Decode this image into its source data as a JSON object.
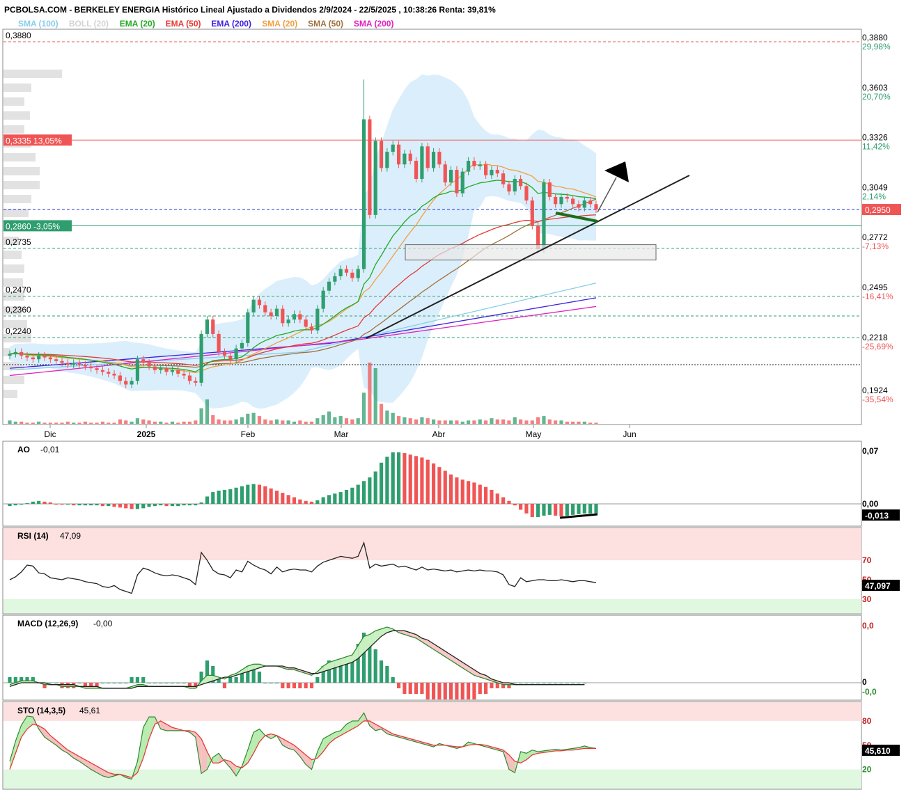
{
  "header": {
    "title": "PCBOLSA.COM - BERKELEY ENERGIA Histórico Lineal Ajustado a Dividendos 2/9/2024 - 22/5/2025 , 10:38:26 Renta: 39,81%",
    "legend": [
      {
        "label": "SMA (100)",
        "color": "#87ceeb"
      },
      {
        "label": "BOLL (20)",
        "color": "#d3d3d3"
      },
      {
        "label": "EMA (20)",
        "color": "#22aa22"
      },
      {
        "label": "EMA (50)",
        "color": "#e53935"
      },
      {
        "label": "EMA (200)",
        "color": "#3b1fe0"
      },
      {
        "label": "SMA (20)",
        "color": "#f0a040"
      },
      {
        "label": "SMA (50)",
        "color": "#a0703a"
      },
      {
        "label": "SMA (200)",
        "color": "#e020c0"
      }
    ]
  },
  "colors": {
    "up": "#2e9e6e",
    "down": "#f05555",
    "boll_fill": "#dbeefb"
  },
  "chart_data": [
    {
      "type": "candlestick",
      "title": "BERKELEY ENERGIA",
      "x_ticks": [
        "Dic",
        "2025",
        "Feb",
        "Mar",
        "Abr",
        "May",
        "Jun"
      ],
      "ylim": [
        0.185,
        0.39
      ],
      "right_axis": [
        {
          "value": "0,3880",
          "pct": "29,98%",
          "pct_color": "#2e9e6e"
        },
        {
          "value": "0,3603",
          "pct": "20,70%",
          "pct_color": "#2e9e6e"
        },
        {
          "value": "0,3326",
          "pct": "11,42%",
          "pct_color": "#2e9e6e"
        },
        {
          "value": "0,3049",
          "pct": "2,14%",
          "pct_color": "#2e9e6e"
        },
        {
          "value": "0,2772",
          "pct": "-7,13%",
          "pct_color": "#f05555"
        },
        {
          "value": "0,2495",
          "pct": "-16,41%",
          "pct_color": "#f05555"
        },
        {
          "value": "0,2218",
          "pct": "-25,69%",
          "pct_color": "#f05555"
        },
        {
          "value": "0,1924",
          "pct": "-35,54%",
          "pct_color": "#f05555"
        }
      ],
      "last_price": "0,2950",
      "levels": [
        {
          "label": "0,3880",
          "value": 0.388
        },
        {
          "label": "0,3335  13,05%",
          "value": 0.3335
        },
        {
          "label": "0,2860  -3,05%",
          "value": 0.286
        },
        {
          "label": "0,2735",
          "value": 0.2735
        },
        {
          "label": "0,2470",
          "value": 0.247
        },
        {
          "label": "0,2360",
          "value": 0.236
        },
        {
          "label": "0,2240",
          "value": 0.224
        }
      ],
      "close": [
        0.215,
        0.216,
        0.214,
        0.213,
        0.212,
        0.214,
        0.213,
        0.212,
        0.211,
        0.21,
        0.209,
        0.21,
        0.209,
        0.208,
        0.207,
        0.206,
        0.205,
        0.204,
        0.203,
        0.2,
        0.198,
        0.2,
        0.212,
        0.21,
        0.208,
        0.206,
        0.207,
        0.205,
        0.206,
        0.204,
        0.203,
        0.2,
        0.199,
        0.226,
        0.234,
        0.226,
        0.216,
        0.214,
        0.212,
        0.218,
        0.221,
        0.238,
        0.245,
        0.242,
        0.238,
        0.236,
        0.24,
        0.232,
        0.234,
        0.237,
        0.234,
        0.23,
        0.228,
        0.24,
        0.25,
        0.255,
        0.258,
        0.262,
        0.26,
        0.257,
        0.262,
        0.345,
        0.292,
        0.333,
        0.318,
        0.327,
        0.331,
        0.32,
        0.326,
        0.322,
        0.312,
        0.33,
        0.318,
        0.327,
        0.32,
        0.31,
        0.317,
        0.304,
        0.316,
        0.322,
        0.319,
        0.32,
        0.314,
        0.317,
        0.315,
        0.309,
        0.305,
        0.312,
        0.308,
        0.3,
        0.286,
        0.273,
        0.31,
        0.302,
        0.298,
        0.302,
        0.301,
        0.298,
        0.296,
        0.3,
        0.298,
        0.295
      ],
      "volume_relative": [
        3,
        2,
        2,
        1,
        1,
        2,
        1,
        1,
        1,
        1,
        2,
        1,
        1,
        2,
        1,
        1,
        2,
        1,
        1,
        4,
        3,
        2,
        5,
        4,
        3,
        2,
        2,
        1,
        2,
        1,
        2,
        2,
        3,
        14,
        22,
        8,
        4,
        3,
        3,
        4,
        6,
        9,
        10,
        7,
        4,
        3,
        4,
        3,
        3,
        2,
        3,
        2,
        2,
        5,
        8,
        11,
        6,
        7,
        5,
        4,
        5,
        28,
        55,
        50,
        18,
        12,
        10,
        7,
        6,
        5,
        4,
        6,
        5,
        4,
        3,
        3,
        3,
        3,
        2,
        3,
        3,
        4,
        3,
        5,
        4,
        4,
        3,
        6,
        4,
        3,
        3,
        6,
        7,
        4,
        3,
        3,
        2,
        2,
        2,
        2,
        1,
        1
      ]
    },
    {
      "type": "bar",
      "title": "AO",
      "value_label": "-0,01",
      "right_axis": [
        "0,07",
        "0,00"
      ],
      "last_value": "-0,013",
      "values": [
        -0.003,
        -0.002,
        -0.001,
        0.001,
        0.003,
        0.004,
        0.003,
        0.002,
        0.0,
        -0.001,
        -0.001,
        -0.002,
        -0.002,
        -0.002,
        -0.002,
        -0.002,
        -0.003,
        -0.003,
        -0.004,
        -0.005,
        -0.006,
        -0.007,
        -0.007,
        -0.006,
        -0.004,
        -0.003,
        -0.002,
        -0.003,
        -0.003,
        -0.003,
        -0.002,
        -0.002,
        -0.002,
        0.002,
        0.01,
        0.016,
        0.018,
        0.019,
        0.02,
        0.022,
        0.024,
        0.026,
        0.027,
        0.026,
        0.024,
        0.021,
        0.018,
        0.015,
        0.012,
        0.009,
        0.006,
        0.004,
        0.003,
        0.005,
        0.009,
        0.012,
        0.014,
        0.016,
        0.019,
        0.022,
        0.026,
        0.031,
        0.036,
        0.044,
        0.056,
        0.064,
        0.07,
        0.07,
        0.069,
        0.067,
        0.065,
        0.063,
        0.06,
        0.055,
        0.05,
        0.045,
        0.04,
        0.036,
        0.033,
        0.031,
        0.029,
        0.026,
        0.023,
        0.019,
        0.014,
        0.009,
        0.004,
        -0.002,
        -0.008,
        -0.013,
        -0.018,
        -0.018,
        -0.016,
        -0.015,
        -0.016,
        -0.017,
        -0.016,
        -0.015,
        -0.014,
        -0.013,
        -0.013,
        -0.013
      ]
    },
    {
      "type": "line",
      "title": "RSI (14)",
      "value_label": "47,09",
      "ylim": [
        0,
        100
      ],
      "right_axis": [
        "70",
        "50",
        "30"
      ],
      "last_value": "47,097",
      "values": [
        50,
        53,
        58,
        65,
        64,
        57,
        56,
        52,
        51,
        50,
        52,
        51,
        50,
        48,
        47,
        46,
        43,
        42,
        44,
        40,
        38,
        36,
        55,
        62,
        60,
        57,
        55,
        54,
        55,
        54,
        52,
        50,
        45,
        78,
        70,
        60,
        56,
        55,
        52,
        60,
        58,
        69,
        65,
        62,
        60,
        56,
        63,
        58,
        60,
        61,
        60,
        60,
        58,
        64,
        68,
        70,
        72,
        74,
        73,
        72,
        74,
        88,
        62,
        66,
        64,
        65,
        66,
        63,
        64,
        62,
        60,
        63,
        60,
        61,
        60,
        59,
        60,
        58,
        59,
        60,
        59,
        60,
        59,
        59,
        58,
        55,
        45,
        43,
        52,
        48,
        49,
        50,
        50,
        49,
        49,
        50,
        49,
        48,
        49,
        49,
        48,
        47
      ]
    },
    {
      "type": "line",
      "title": "MACD (12,26,9)",
      "value_label": "-0,00",
      "right_axis": [
        "0,0",
        "0",
        "-0,0"
      ],
      "series": [
        {
          "name": "MACD",
          "values": [
            -0.001,
            0.0,
            0.001,
            0.001,
            0.001,
            0.0,
            -0.001,
            -0.001,
            -0.001,
            -0.002,
            -0.002,
            -0.002,
            -0.002,
            -0.003,
            -0.003,
            -0.003,
            -0.003,
            -0.003,
            -0.003,
            -0.003,
            -0.003,
            -0.002,
            -0.001,
            -0.001,
            -0.002,
            -0.002,
            -0.002,
            -0.002,
            -0.002,
            -0.002,
            -0.002,
            -0.003,
            -0.003,
            0.001,
            0.004,
            0.004,
            0.003,
            0.002,
            0.004,
            0.005,
            0.007,
            0.009,
            0.01,
            0.01,
            0.009,
            0.009,
            0.009,
            0.008,
            0.007,
            0.007,
            0.006,
            0.005,
            0.004,
            0.006,
            0.009,
            0.011,
            0.012,
            0.013,
            0.014,
            0.015,
            0.02,
            0.025,
            0.026,
            0.028,
            0.029,
            0.03,
            0.029,
            0.027,
            0.026,
            0.025,
            0.024,
            0.022,
            0.02,
            0.018,
            0.016,
            0.014,
            0.012,
            0.01,
            0.008,
            0.006,
            0.004,
            0.003,
            0.002,
            0.001,
            0.0,
            -0.001,
            -0.001,
            -0.001,
            -0.001,
            -0.001,
            -0.001,
            -0.001,
            -0.001,
            -0.001,
            -0.001,
            -0.001,
            -0.001,
            -0.001,
            -0.001,
            -0.001
          ]
        },
        {
          "name": "Signal",
          "values": [
            -0.002,
            -0.001,
            0.0,
            0.0,
            0.0,
            0.0,
            0.0,
            -0.001,
            -0.001,
            -0.001,
            -0.001,
            -0.001,
            -0.002,
            -0.002,
            -0.002,
            -0.002,
            -0.003,
            -0.003,
            -0.003,
            -0.003,
            -0.003,
            -0.003,
            -0.002,
            -0.002,
            -0.002,
            -0.002,
            -0.002,
            -0.002,
            -0.002,
            -0.002,
            -0.002,
            -0.002,
            -0.002,
            -0.001,
            0.0,
            0.001,
            0.002,
            0.003,
            0.003,
            0.004,
            0.005,
            0.006,
            0.007,
            0.008,
            0.009,
            0.009,
            0.009,
            0.009,
            0.008,
            0.008,
            0.007,
            0.006,
            0.005,
            0.005,
            0.006,
            0.007,
            0.008,
            0.009,
            0.01,
            0.011,
            0.013,
            0.016,
            0.019,
            0.022,
            0.025,
            0.027,
            0.028,
            0.028,
            0.028,
            0.027,
            0.026,
            0.024,
            0.023,
            0.021,
            0.019,
            0.017,
            0.015,
            0.013,
            0.011,
            0.009,
            0.007,
            0.005,
            0.004,
            0.002,
            0.001,
            0.0,
            0.0,
            -0.001,
            -0.001,
            -0.001,
            -0.001,
            -0.001,
            -0.001,
            -0.001,
            -0.001,
            -0.001,
            -0.001,
            -0.001,
            -0.001,
            -0.001
          ]
        }
      ]
    },
    {
      "type": "line",
      "title": "STO (14,3,5)",
      "value_label": "45,61",
      "ylim": [
        0,
        100
      ],
      "right_axis": [
        "80",
        "50",
        "20"
      ],
      "last_value": "45,610",
      "series": [
        {
          "name": "%K",
          "values": [
            30,
            55,
            75,
            86,
            85,
            70,
            60,
            55,
            50,
            44,
            40,
            34,
            30,
            25,
            20,
            16,
            12,
            10,
            12,
            14,
            10,
            8,
            30,
            72,
            85,
            85,
            70,
            68,
            68,
            68,
            68,
            66,
            60,
            15,
            20,
            35,
            40,
            30,
            22,
            12,
            24,
            44,
            66,
            70,
            62,
            58,
            62,
            50,
            46,
            44,
            36,
            26,
            20,
            42,
            58,
            62,
            66,
            68,
            76,
            80,
            80,
            90,
            74,
            68,
            70,
            64,
            62,
            60,
            58,
            56,
            54,
            52,
            50,
            48,
            52,
            50,
            48,
            46,
            48,
            54,
            52,
            50,
            48,
            46,
            44,
            42,
            20,
            16,
            42,
            40,
            44,
            42,
            43,
            44,
            45,
            44,
            45,
            46,
            47,
            49,
            47,
            46
          ]
        },
        {
          "name": "%D",
          "values": [
            20,
            40,
            60,
            70,
            76,
            74,
            70,
            62,
            56,
            50,
            44,
            40,
            36,
            32,
            28,
            24,
            20,
            16,
            14,
            14,
            12,
            10,
            16,
            34,
            58,
            76,
            80,
            76,
            72,
            70,
            68,
            68,
            66,
            58,
            42,
            28,
            28,
            32,
            30,
            24,
            22,
            28,
            40,
            54,
            62,
            64,
            62,
            58,
            54,
            50,
            44,
            38,
            32,
            34,
            42,
            52,
            58,
            62,
            66,
            70,
            74,
            80,
            80,
            76,
            72,
            68,
            64,
            62,
            60,
            58,
            56,
            54,
            52,
            50,
            50,
            50,
            49,
            48,
            48,
            50,
            51,
            51,
            50,
            48,
            46,
            44,
            38,
            30,
            28,
            32,
            38,
            40,
            41,
            42,
            43,
            43,
            44,
            44,
            45,
            46,
            46,
            46
          ]
        }
      ]
    }
  ]
}
